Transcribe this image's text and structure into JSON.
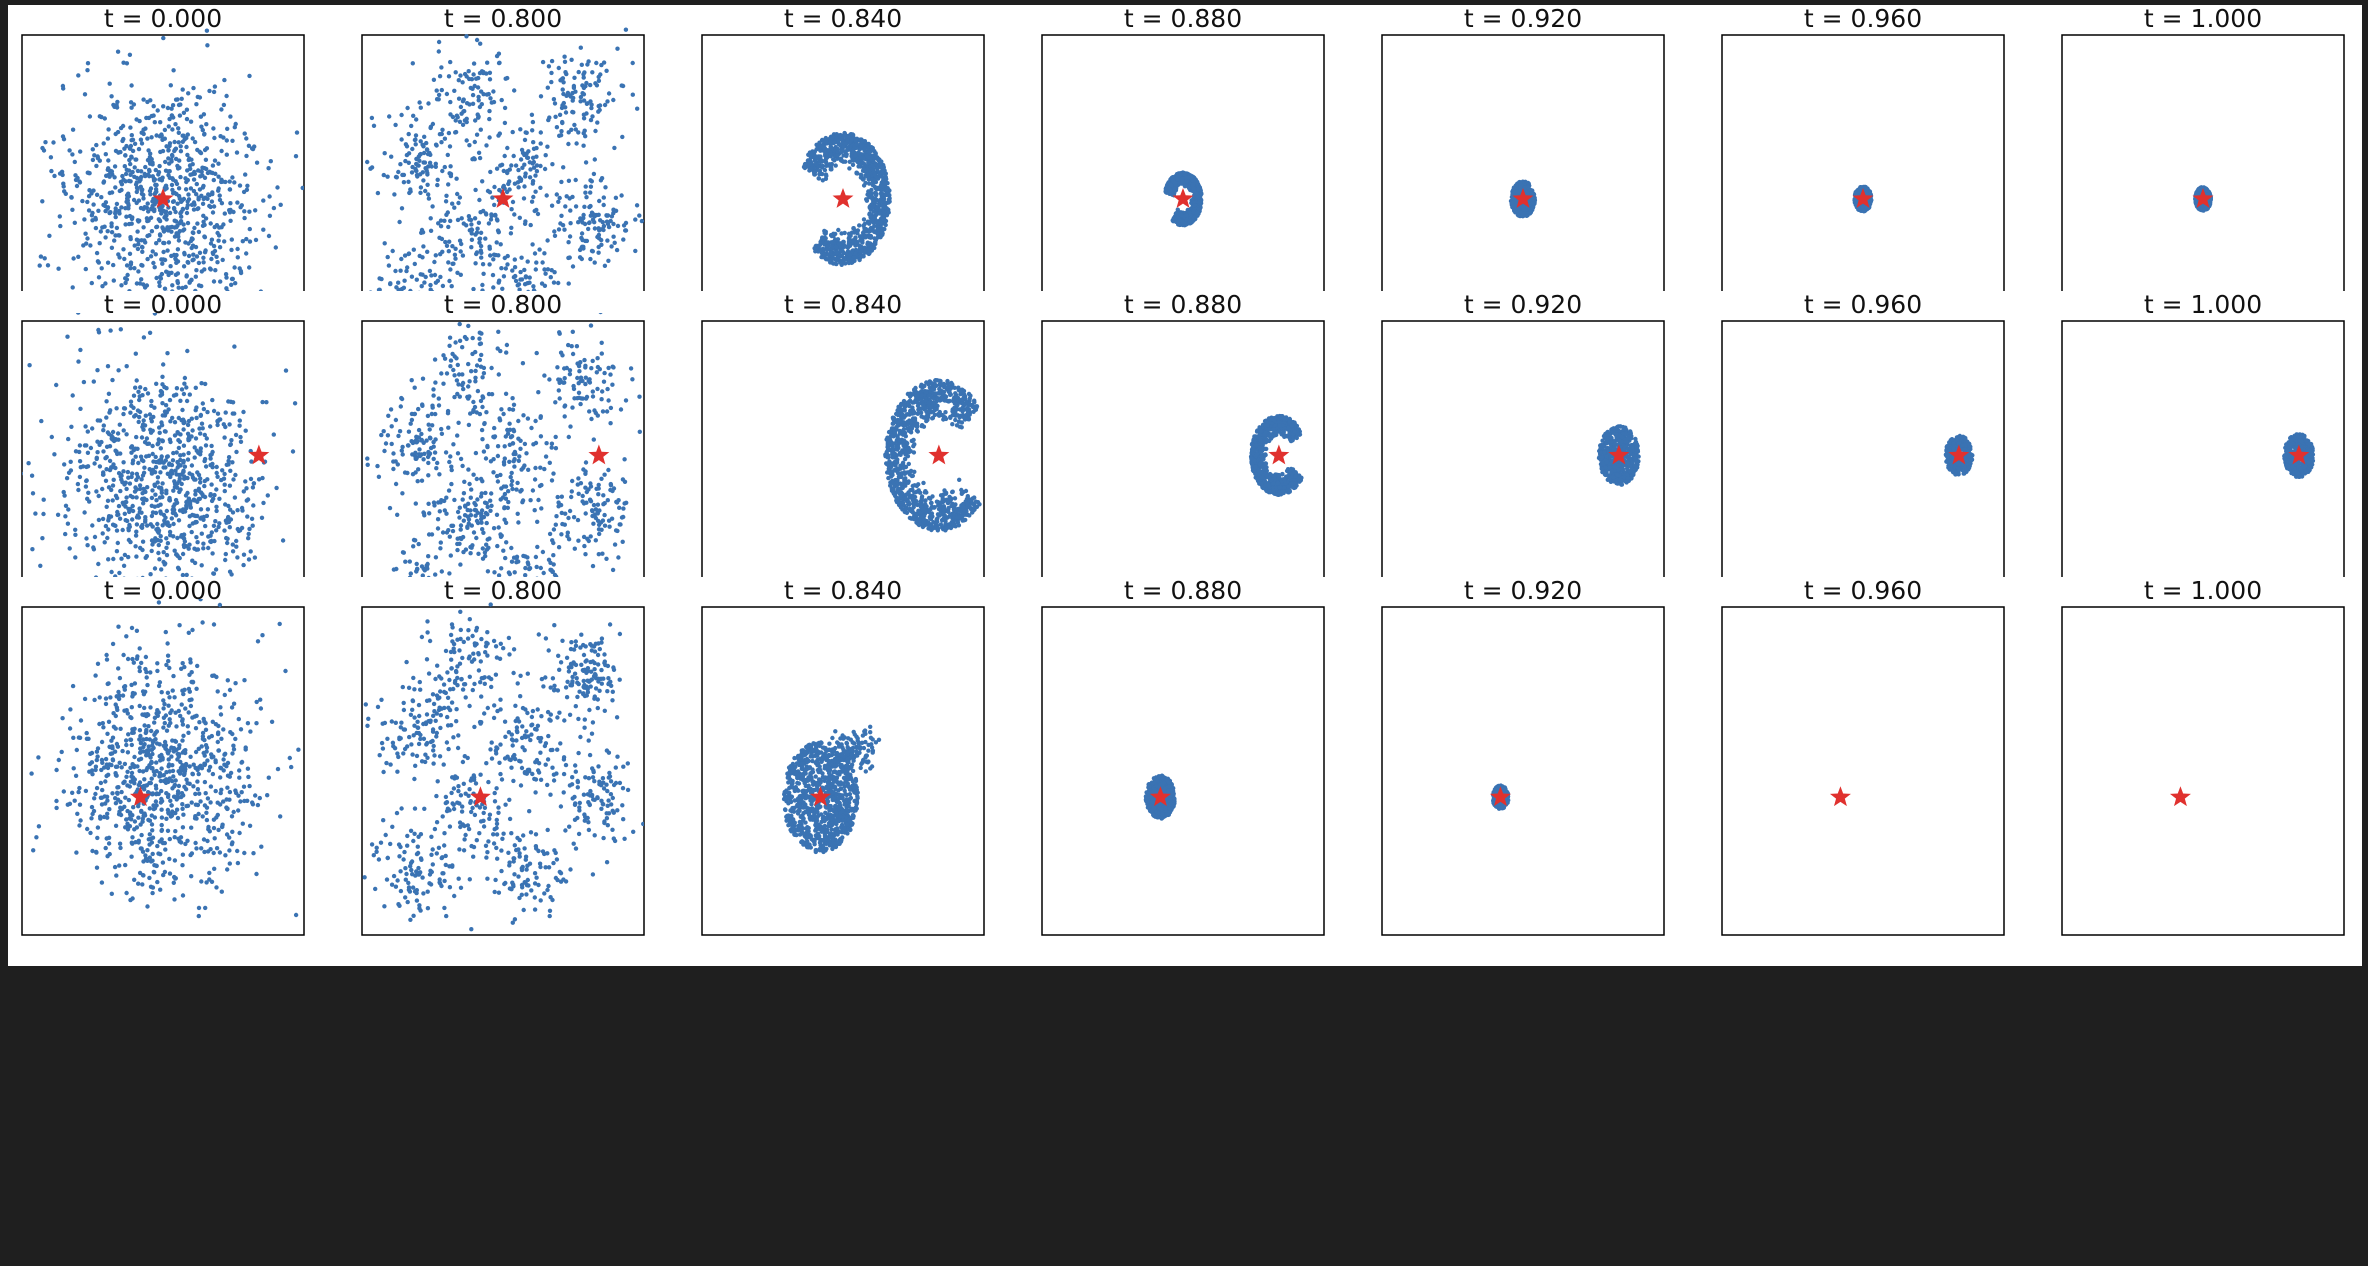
{
  "figure": {
    "description_free": true
  },
  "chart_data": {
    "type": "scatter",
    "rows": [
      {
        "panels": [
          {
            "title": "t = 0.000",
            "pattern": "gaussian",
            "spread": 0.17,
            "target": [
              0.5,
              0.5
            ],
            "n": 900
          },
          {
            "title": "t = 0.800",
            "pattern": "clusters",
            "target": [
              0.5,
              0.5
            ],
            "n": 900
          },
          {
            "title": "t = 0.840",
            "pattern": "ring",
            "target": [
              0.5,
              0.5
            ],
            "radius": 0.175,
            "gap_deg": 170,
            "gap_width_deg": 80,
            "n": 1000
          },
          {
            "title": "t = 0.880",
            "pattern": "ring",
            "target": [
              0.5,
              0.5
            ],
            "radius": 0.07,
            "gap_deg": 160,
            "gap_width_deg": 70,
            "n": 800
          },
          {
            "title": "t = 0.920",
            "pattern": "blob",
            "target": [
              0.5,
              0.5
            ],
            "radius": 0.045,
            "n": 500
          },
          {
            "title": "t = 0.960",
            "pattern": "blob",
            "target": [
              0.5,
              0.5
            ],
            "radius": 0.032,
            "n": 400
          },
          {
            "title": "t = 1.000",
            "pattern": "blob",
            "target": [
              0.5,
              0.5
            ],
            "radius": 0.03,
            "n": 400
          }
        ]
      },
      {
        "panels": [
          {
            "title": "t = 0.000",
            "pattern": "gaussian",
            "spread": 0.17,
            "target": [
              0.84,
              0.41
            ],
            "n": 900
          },
          {
            "title": "t = 0.800",
            "pattern": "clusters",
            "target": [
              0.84,
              0.41
            ],
            "n": 900
          },
          {
            "title": "t = 0.840",
            "pattern": "ring",
            "target": [
              0.84,
              0.41
            ],
            "radius": 0.2,
            "gap_deg": 0,
            "gap_width_deg": 80,
            "n": 1000
          },
          {
            "title": "t = 0.880",
            "pattern": "ring",
            "target": [
              0.84,
              0.41
            ],
            "radius": 0.105,
            "gap_deg": 0,
            "gap_width_deg": 70,
            "n": 800
          },
          {
            "title": "t = 0.920",
            "pattern": "blob",
            "target": [
              0.84,
              0.41
            ],
            "radius": 0.075,
            "n": 500
          },
          {
            "title": "t = 0.960",
            "pattern": "blob",
            "target": [
              0.84,
              0.41
            ],
            "radius": 0.05,
            "n": 400
          },
          {
            "title": "t = 1.000",
            "pattern": "blob",
            "target": [
              0.84,
              0.41
            ],
            "radius": 0.055,
            "n": 400
          }
        ]
      },
      {
        "panels": [
          {
            "title": "t = 0.000",
            "pattern": "gaussian",
            "spread": 0.17,
            "target": [
              0.42,
              0.58
            ],
            "n": 900
          },
          {
            "title": "t = 0.800",
            "pattern": "clusters",
            "target": [
              0.42,
              0.58
            ],
            "n": 900
          },
          {
            "title": "t = 0.840",
            "pattern": "blobwing",
            "target": [
              0.42,
              0.58
            ],
            "radius": 0.14,
            "n": 1000
          },
          {
            "title": "t = 0.880",
            "pattern": "blob",
            "target": [
              0.42,
              0.58
            ],
            "radius": 0.055,
            "n": 500
          },
          {
            "title": "t = 0.920",
            "pattern": "blob",
            "target": [
              0.42,
              0.58
            ],
            "radius": 0.03,
            "n": 300
          },
          {
            "title": "t = 0.960",
            "pattern": "blob",
            "target": [
              0.42,
              0.58
            ],
            "radius": 0.0,
            "n": 0
          },
          {
            "title": "t = 1.000",
            "pattern": "blob",
            "target": [
              0.42,
              0.58
            ],
            "radius": 0.0,
            "n": 0
          }
        ]
      }
    ],
    "colors": {
      "points": "#3a73b3",
      "target": "#e0312e"
    },
    "axes": {
      "xticks": "none",
      "yticks": "none",
      "grid": false
    }
  }
}
